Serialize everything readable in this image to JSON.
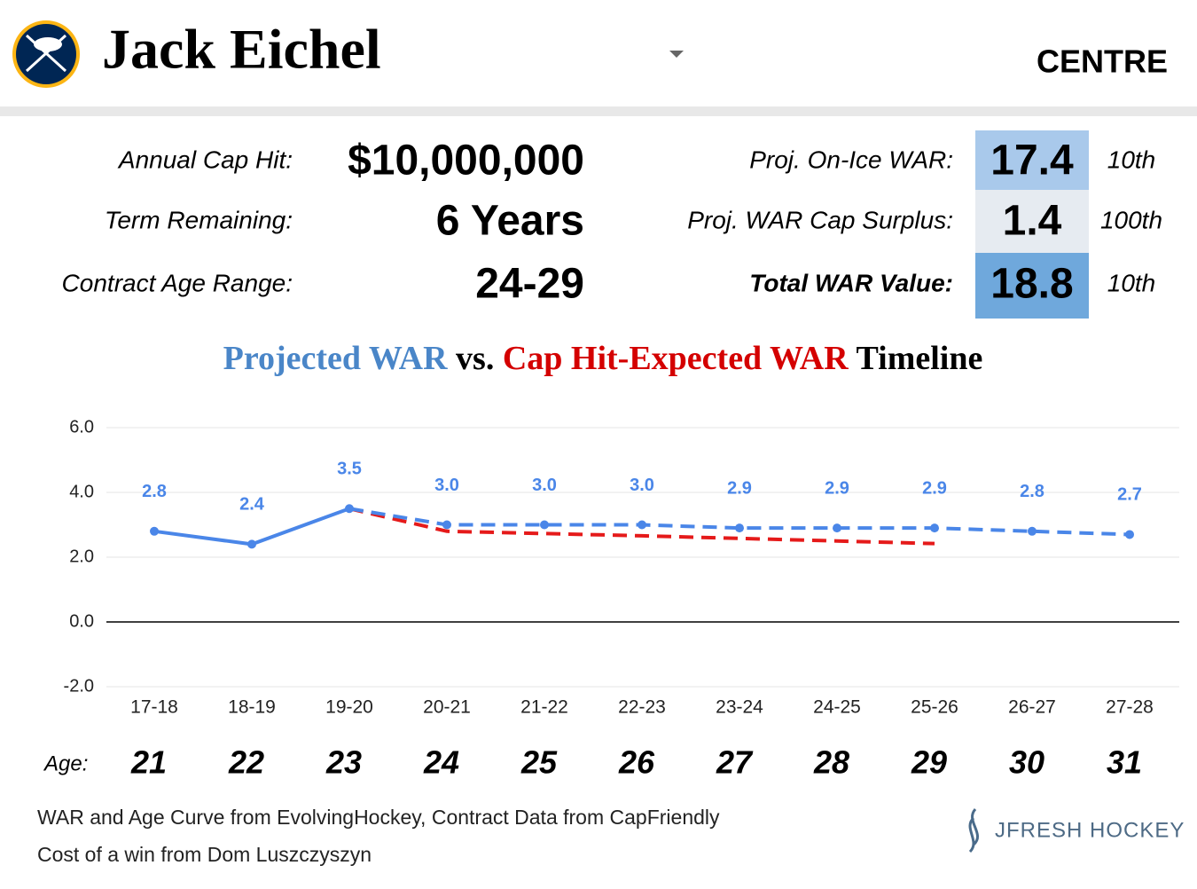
{
  "header": {
    "player": "Jack Eichel",
    "position": "CENTRE"
  },
  "contract": [
    {
      "label": "Annual Cap Hit:",
      "value": "$10,000,000"
    },
    {
      "label": "Term Remaining:",
      "value": "6 Years"
    },
    {
      "label": "Contract Age Range:",
      "value": "24-29"
    }
  ],
  "war": [
    {
      "label": "Proj. On-Ice WAR:",
      "value": 17.4,
      "rank": "10th",
      "color": "#a9c9eb",
      "bold": false
    },
    {
      "label": "Proj. WAR Cap Surplus:",
      "value": 1.4,
      "rank": "100th",
      "color": "#e6ebf1",
      "bold": false
    },
    {
      "label": "Total WAR Value:",
      "value": 18.8,
      "rank": "10th",
      "color": "#6fa8dc",
      "bold": true
    }
  ],
  "chart_data": {
    "type": "line",
    "title": [
      {
        "text": "Projected WAR",
        "color": "#4a86c8"
      },
      {
        "text": "vs.",
        "color": "#000000"
      },
      {
        "text": "Cap Hit-Expected WAR",
        "color": "#d40000"
      },
      {
        "text": "Timeline",
        "color": "#000000"
      }
    ],
    "categories": [
      "17-18",
      "18-19",
      "19-20",
      "20-21",
      "21-22",
      "22-23",
      "23-24",
      "24-25",
      "25-26",
      "26-27",
      "27-28"
    ],
    "age_label": "Age:",
    "ages": [
      21,
      22,
      23,
      24,
      25,
      26,
      27,
      28,
      29,
      30,
      31
    ],
    "dash_start": 2,
    "series": [
      {
        "name": "Projected WAR",
        "color": "#4a86e8",
        "values": [
          2.8,
          2.4,
          3.5,
          3.0,
          3.0,
          3.0,
          2.9,
          2.9,
          2.9,
          2.8,
          2.7
        ],
        "value_labels": [
          "2.8",
          "2.4",
          "3.5",
          "3.0",
          "3.0",
          "3.0",
          "2.9",
          "2.9",
          "2.9",
          "2.8",
          "2.7"
        ]
      },
      {
        "name": "Cap Hit-Expected WAR",
        "color": "#e51a1a",
        "values": [
          null,
          null,
          3.5,
          2.8,
          2.73,
          2.66,
          2.58,
          2.5,
          2.42,
          null,
          null
        ]
      }
    ],
    "ylim": [
      -2,
      6
    ],
    "yticks": [
      {
        "value": -2,
        "label": "-2.0"
      },
      {
        "value": 0,
        "label": "0.0"
      },
      {
        "value": 2,
        "label": "2.0"
      },
      {
        "value": 4,
        "label": "4.0"
      },
      {
        "value": 6,
        "label": "6.0"
      }
    ],
    "grid": true
  },
  "footer": {
    "sources": [
      "WAR and Age Curve from EvolvingHockey, Contract Data from CapFriendly",
      "Cost of a win from Dom Luszczyszyn"
    ],
    "brand": "JFRESH HOCKEY"
  }
}
